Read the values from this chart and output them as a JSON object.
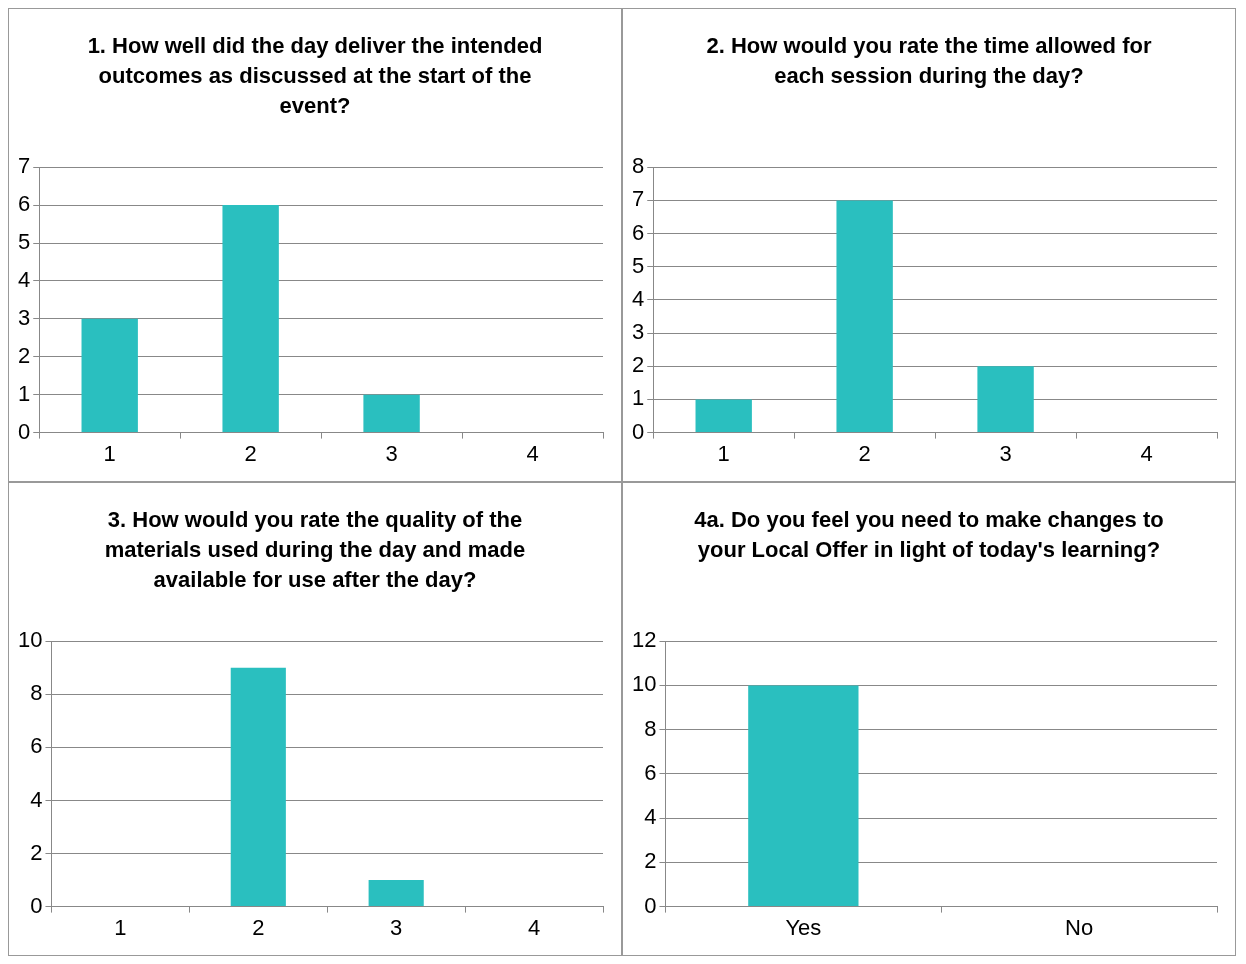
{
  "chart_data": [
    {
      "type": "bar",
      "title": "1. How well did the day deliver the intended outcomes as discussed at the start of the event?",
      "categories": [
        "1",
        "2",
        "3",
        "4"
      ],
      "values": [
        3,
        6,
        1,
        0
      ],
      "color": "#2abfbf",
      "ylim": [
        0,
        7
      ],
      "yticks": [
        0,
        1,
        2,
        3,
        4,
        5,
        6,
        7
      ],
      "grid": "y"
    },
    {
      "type": "bar",
      "title": "2. How would you rate the time allowed for each session during the day?",
      "categories": [
        "1",
        "2",
        "3",
        "4"
      ],
      "values": [
        1,
        7,
        2,
        0
      ],
      "color": "#2abfbf",
      "ylim": [
        0,
        8
      ],
      "yticks": [
        0,
        1,
        2,
        3,
        4,
        5,
        6,
        7,
        8
      ],
      "grid": "y"
    },
    {
      "type": "bar",
      "title": "3. How would you rate the quality of the materials used during the day and made available for use after the day?",
      "categories": [
        "1",
        "2",
        "3",
        "4"
      ],
      "values": [
        0,
        9,
        1,
        0
      ],
      "color": "#2abfbf",
      "ylim": [
        0,
        10
      ],
      "yticks": [
        0,
        2,
        4,
        6,
        8,
        10
      ],
      "grid": "y"
    },
    {
      "type": "bar",
      "title": "4a.  Do you feel you need to make changes to your Local Offer in light of today's learning?",
      "categories": [
        "Yes",
        "No"
      ],
      "values": [
        10,
        0
      ],
      "color": "#2abfbf",
      "ylim": [
        0,
        12
      ],
      "yticks": [
        0,
        2,
        4,
        6,
        8,
        10,
        12
      ],
      "grid": "y"
    }
  ]
}
